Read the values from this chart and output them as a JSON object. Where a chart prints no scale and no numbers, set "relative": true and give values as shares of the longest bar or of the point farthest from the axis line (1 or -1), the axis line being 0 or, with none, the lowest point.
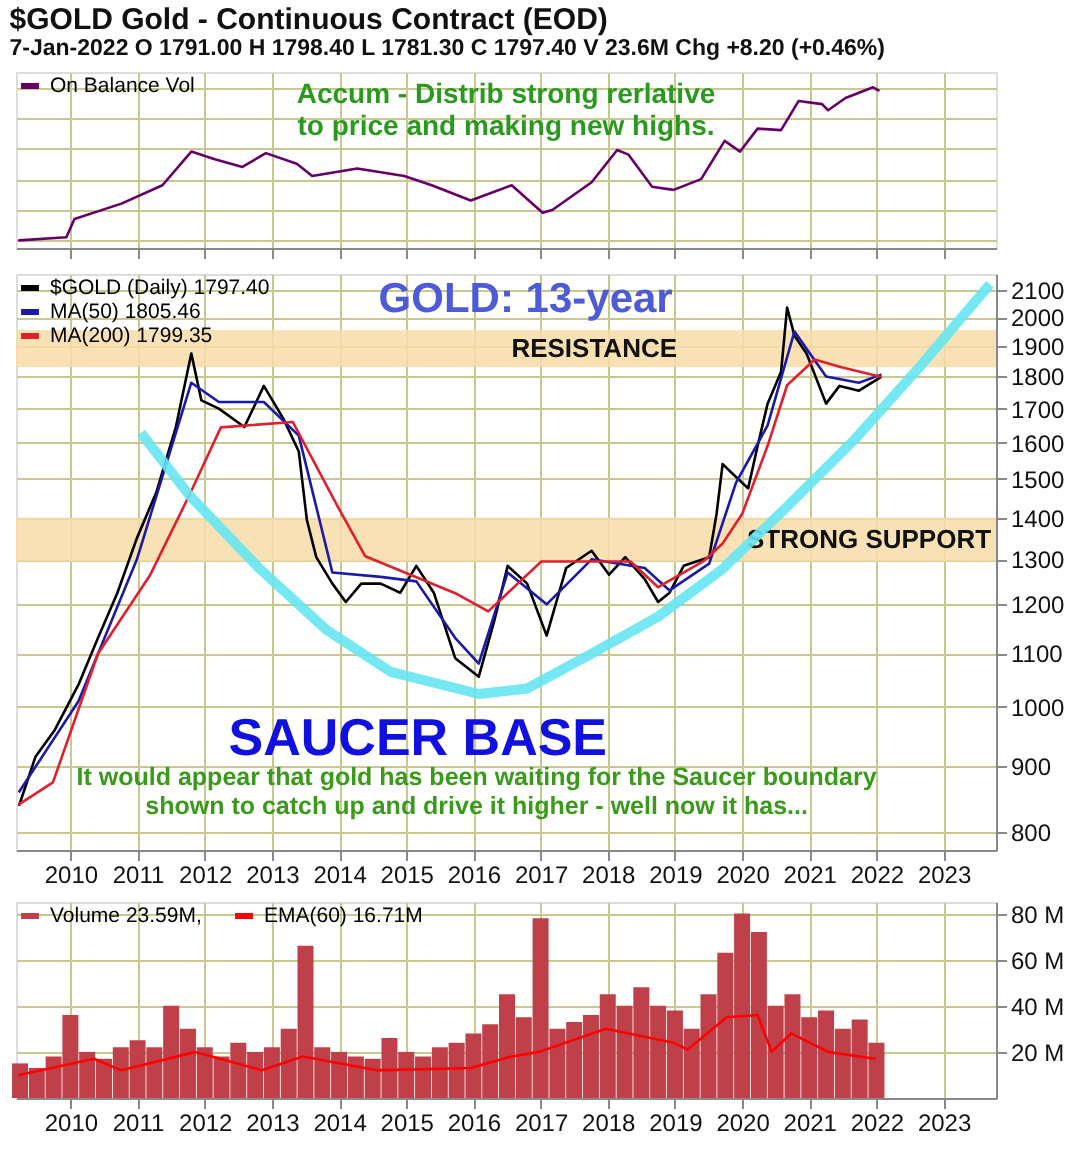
{
  "chart_data": [
    {
      "type": "line",
      "title": "$GOLD Gold - Continuous Contract (EOD)",
      "subtitle": "7-Jan-2022   O 1791.00  H 1798.40  L 1781.30  C 1797.40  V 23.6M  Chg +8.20 (+0.46%)",
      "relative": true,
      "xlim": [
        2009.19,
        2023.78
      ],
      "xticks": [
        2010,
        2011,
        2012,
        2013,
        2014,
        2015,
        2016,
        2017,
        2018,
        2019,
        2020,
        2021,
        2022,
        2023
      ],
      "tick_labels": false,
      "grid": true,
      "legend": "top left",
      "annotations": [
        "Accum - Distrib strong rerlative\nto price and making new highs."
      ],
      "series": [
        {
          "name": "On Balance Vol",
          "color": "#660066",
          "x": [
            2009.24,
            2009.94,
            2010.06,
            2010.76,
            2011.37,
            2011.8,
            2012.15,
            2012.56,
            2012.91,
            2013.37,
            2013.6,
            2014.27,
            2014.97,
            2015.38,
            2015.96,
            2016.57,
            2017.03,
            2017.18,
            2017.76,
            2018.14,
            2018.31,
            2018.66,
            2018.98,
            2019.39,
            2019.74,
            2019.97,
            2020.23,
            2020.58,
            2020.84,
            2021.19,
            2021.28,
            2021.54,
            2021.95,
            2022.03
          ],
          "values": [
            0,
            0.02,
            0.14,
            0.24,
            0.36,
            0.58,
            0.53,
            0.48,
            0.57,
            0.5,
            0.42,
            0.47,
            0.42,
            0.36,
            0.26,
            0.36,
            0.18,
            0.2,
            0.38,
            0.59,
            0.56,
            0.35,
            0.33,
            0.4,
            0.65,
            0.58,
            0.73,
            0.72,
            0.91,
            0.89,
            0.85,
            0.93,
            1,
            0.98
          ]
        }
      ]
    },
    {
      "type": "line",
      "log": true,
      "xlim": [
        2009.19,
        2023.78
      ],
      "xticks": [
        2010,
        2011,
        2012,
        2013,
        2014,
        2015,
        2016,
        2017,
        2018,
        2019,
        2020,
        2021,
        2022,
        2023
      ],
      "ylim": [
        775,
        2160
      ],
      "yticks": [
        800,
        900,
        1000,
        1100,
        1200,
        1300,
        1400,
        1500,
        1600,
        1700,
        1800,
        1900,
        2000,
        2100
      ],
      "grid": true,
      "legend": "top left",
      "bands": [
        {
          "axis": "y",
          "from": 1830,
          "to": 1955,
          "label": "RESISTANCE",
          "color": "#f6dca8"
        },
        {
          "axis": "y",
          "from": 1295,
          "to": 1400,
          "label": "STRONG SUPPORT",
          "color": "#f6dca8"
        }
      ],
      "annotations": [
        "GOLD: 13-year",
        "SAUCER BASE",
        "It would appear that gold has been waiting for the Saucer boundary\nshown to catch up and drive it higher - well now it has..."
      ],
      "series": [
        {
          "name": "$GOLD (Daily) 1797.40",
          "color": "#000000",
          "x": [
            2009.24,
            2009.48,
            2009.77,
            2010.12,
            2010.41,
            2010.7,
            2010.99,
            2011.28,
            2011.57,
            2011.8,
            2011.95,
            2012.21,
            2012.59,
            2012.88,
            2013.17,
            2013.4,
            2013.52,
            2013.66,
            2013.9,
            2014.1,
            2014.33,
            2014.62,
            2014.91,
            2015.15,
            2015.41,
            2015.73,
            2016.08,
            2016.31,
            2016.51,
            2016.8,
            2017.09,
            2017.38,
            2017.76,
            2018.02,
            2018.26,
            2018.55,
            2018.75,
            2018.92,
            2019.13,
            2019.51,
            2019.62,
            2019.71,
            2019.91,
            2020.09,
            2020.23,
            2020.38,
            2020.58,
            2020.67,
            2020.78,
            2020.96,
            2021.25,
            2021.45,
            2021.74,
            2022.06
          ],
          "values": [
            840,
            915,
            960,
            1040,
            1130,
            1225,
            1350,
            1465,
            1645,
            1875,
            1725,
            1700,
            1645,
            1770,
            1670,
            1575,
            1395,
            1305,
            1245,
            1205,
            1245,
            1245,
            1225,
            1285,
            1225,
            1090,
            1055,
            1165,
            1285,
            1245,
            1135,
            1280,
            1320,
            1265,
            1305,
            1255,
            1205,
            1225,
            1285,
            1305,
            1410,
            1540,
            1505,
            1475,
            1590,
            1715,
            1815,
            2035,
            1935,
            1875,
            1715,
            1770,
            1755,
            1797
          ]
        },
        {
          "name": "MA(50) 1805.46",
          "color": "#1a1aa6",
          "x": [
            2009.24,
            2010.12,
            2010.99,
            2011.8,
            2012.21,
            2012.88,
            2013.4,
            2013.9,
            2014.62,
            2015.15,
            2015.73,
            2016.08,
            2016.51,
            2017.09,
            2017.76,
            2018.55,
            2018.92,
            2019.51,
            2019.91,
            2020.38,
            2020.78,
            2021.25,
            2021.74,
            2022.06
          ],
          "values": [
            860,
            1010,
            1300,
            1780,
            1720,
            1720,
            1620,
            1270,
            1260,
            1250,
            1130,
            1080,
            1270,
            1200,
            1300,
            1280,
            1230,
            1290,
            1490,
            1650,
            1950,
            1800,
            1780,
            1805
          ]
        },
        {
          "name": "MA(200) 1799.35",
          "color": "#e0202c",
          "x": [
            2009.24,
            2009.74,
            2010.41,
            2011.19,
            2011.77,
            2012.24,
            2013.31,
            2013.98,
            2014.39,
            2015.73,
            2016.22,
            2017.01,
            2017.88,
            2018.34,
            2018.75,
            2019.42,
            2019.71,
            2020.0,
            2020.38,
            2020.67,
            2021.08,
            2021.45,
            2022.06
          ],
          "values": [
            841,
            874,
            1099,
            1265,
            1457,
            1644,
            1660,
            1428,
            1307,
            1224,
            1185,
            1295,
            1295,
            1295,
            1237,
            1295,
            1337,
            1409,
            1591,
            1772,
            1855,
            1831,
            1799
          ]
        },
        {
          "color": "#66e6f2",
          "x": [
            2011.05,
            2011.77,
            2012.82,
            2013.81,
            2014.77,
            2016.08,
            2016.8,
            2017.76,
            2018.75,
            2019.71,
            2020.67,
            2021.66,
            2022.62,
            2023.11,
            2023.69
          ],
          "values": [
            1628,
            1457,
            1278,
            1147,
            1064,
            1023,
            1033,
            1099,
            1174,
            1278,
            1428,
            1606,
            1825,
            1955,
            2121
          ]
        }
      ]
    },
    {
      "type": "bar",
      "xlim": [
        2009.19,
        2023.78
      ],
      "xticks": [
        2010,
        2011,
        2012,
        2013,
        2014,
        2015,
        2016,
        2017,
        2018,
        2019,
        2020,
        2021,
        2022,
        2023
      ],
      "ylim": [
        0,
        85
      ],
      "yticks": [
        {
          "value": 20,
          "label": "20 M"
        },
        {
          "value": 40,
          "label": "40 M"
        },
        {
          "value": 60,
          "label": "60 M"
        },
        {
          "value": 80,
          "label": "80 M"
        }
      ],
      "grid": true,
      "legend": "top left",
      "series": [
        {
          "name": "Volume 23.59M,",
          "color": "#c0404a",
          "x": [
            2009.25,
            2009.5,
            2009.75,
            2010.0,
            2010.25,
            2010.5,
            2010.75,
            2011.0,
            2011.25,
            2011.5,
            2011.75,
            2012.0,
            2012.25,
            2012.5,
            2012.75,
            2013.0,
            2013.25,
            2013.5,
            2013.75,
            2014.0,
            2014.25,
            2014.5,
            2014.75,
            2015.0,
            2015.25,
            2015.5,
            2015.75,
            2016.0,
            2016.25,
            2016.5,
            2016.75,
            2017.0,
            2017.25,
            2017.5,
            2017.75,
            2018.0,
            2018.25,
            2018.5,
            2018.75,
            2019.0,
            2019.25,
            2019.5,
            2019.75,
            2020.0,
            2020.25,
            2020.5,
            2020.75,
            2021.0,
            2021.25,
            2021.5,
            2021.75,
            2022.0
          ],
          "values": [
            15,
            13,
            18,
            36,
            20,
            17,
            22,
            25,
            22,
            40,
            30,
            22,
            18,
            24,
            20,
            22,
            30,
            66,
            22,
            20,
            18,
            17,
            26,
            20,
            18,
            22,
            24,
            28,
            32,
            45,
            35,
            78,
            30,
            33,
            36,
            45,
            40,
            48,
            40,
            38,
            30,
            45,
            63,
            80,
            72,
            40,
            45,
            35,
            38,
            30,
            34,
            24
          ]
        },
        {
          "name": "EMA(60) 16.71M",
          "color": "#ff0000",
          "type": "line",
          "x": [
            2009.24,
            2010.35,
            2010.76,
            2011.86,
            2012.85,
            2013.46,
            2014.56,
            2015.96,
            2016.57,
            2016.98,
            2017.97,
            2018.98,
            2019.19,
            2019.77,
            2020.23,
            2020.44,
            2020.73,
            2021.28,
            2021.98
          ],
          "values": [
            10,
            17,
            12,
            20,
            12,
            18,
            12,
            13,
            18,
            20,
            30,
            24,
            21,
            35,
            36,
            20,
            28,
            20,
            17
          ]
        }
      ]
    }
  ]
}
